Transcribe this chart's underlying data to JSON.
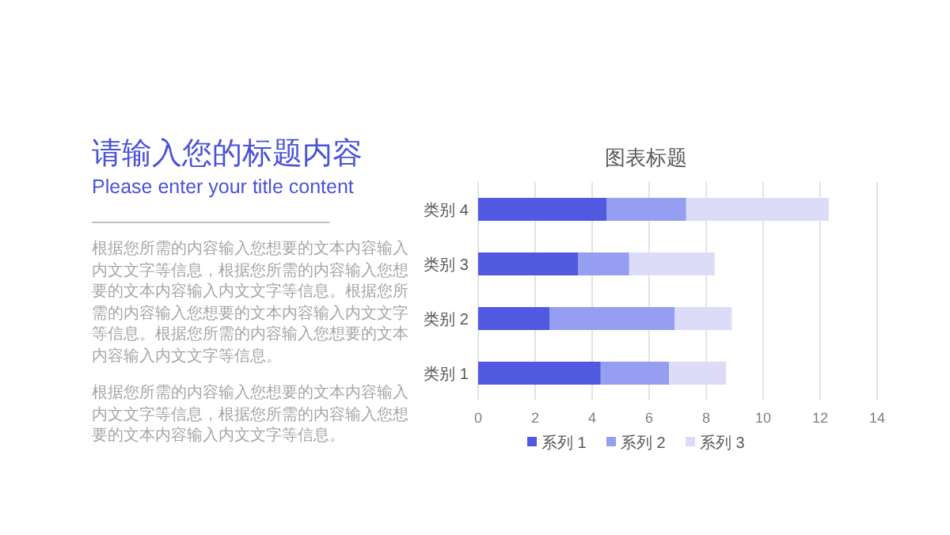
{
  "chart_data": [
    {
      "type": "other",
      "title": "请输入您的标题内容",
      "subtitle": "Please enter your title content",
      "annotations": [
        "根据您所需的内容输入您想要的文本内容输入内文文字等信息，根据您所需的内容输入您想要的文本内容输入内文文字等信息。根据您所需的内容输入您想要的文本内容输入内文文字等信息。根据您所需的内容输入您想要的文本内容输入内文文字等信息。",
        "根据您所需的内容输入您想要的文本内容输入内文文字等信息，根据您所需的内容输入您想要的文本内容输入内文文字等信息。"
      ]
    },
    {
      "type": "bar",
      "orientation": "horizontal",
      "stacked": true,
      "title": "图表标题",
      "categories": [
        "类别 4",
        "类别 3",
        "类别 2",
        "类别 1"
      ],
      "series": [
        {
          "name": "系列 1",
          "color": "#5059e0",
          "values": [
            4.5,
            3.5,
            2.5,
            4.3
          ]
        },
        {
          "name": "系列 2",
          "color": "#959ef0",
          "values": [
            2.8,
            1.8,
            4.4,
            2.4
          ]
        },
        {
          "name": "系列 3",
          "color": "#dcdcf8",
          "values": [
            5,
            3,
            2,
            2
          ]
        }
      ],
      "xlim": [
        0,
        14
      ],
      "xticks": [
        0,
        2,
        4,
        6,
        8,
        10,
        12,
        14
      ],
      "grid": "x",
      "legend": "bottom"
    }
  ]
}
